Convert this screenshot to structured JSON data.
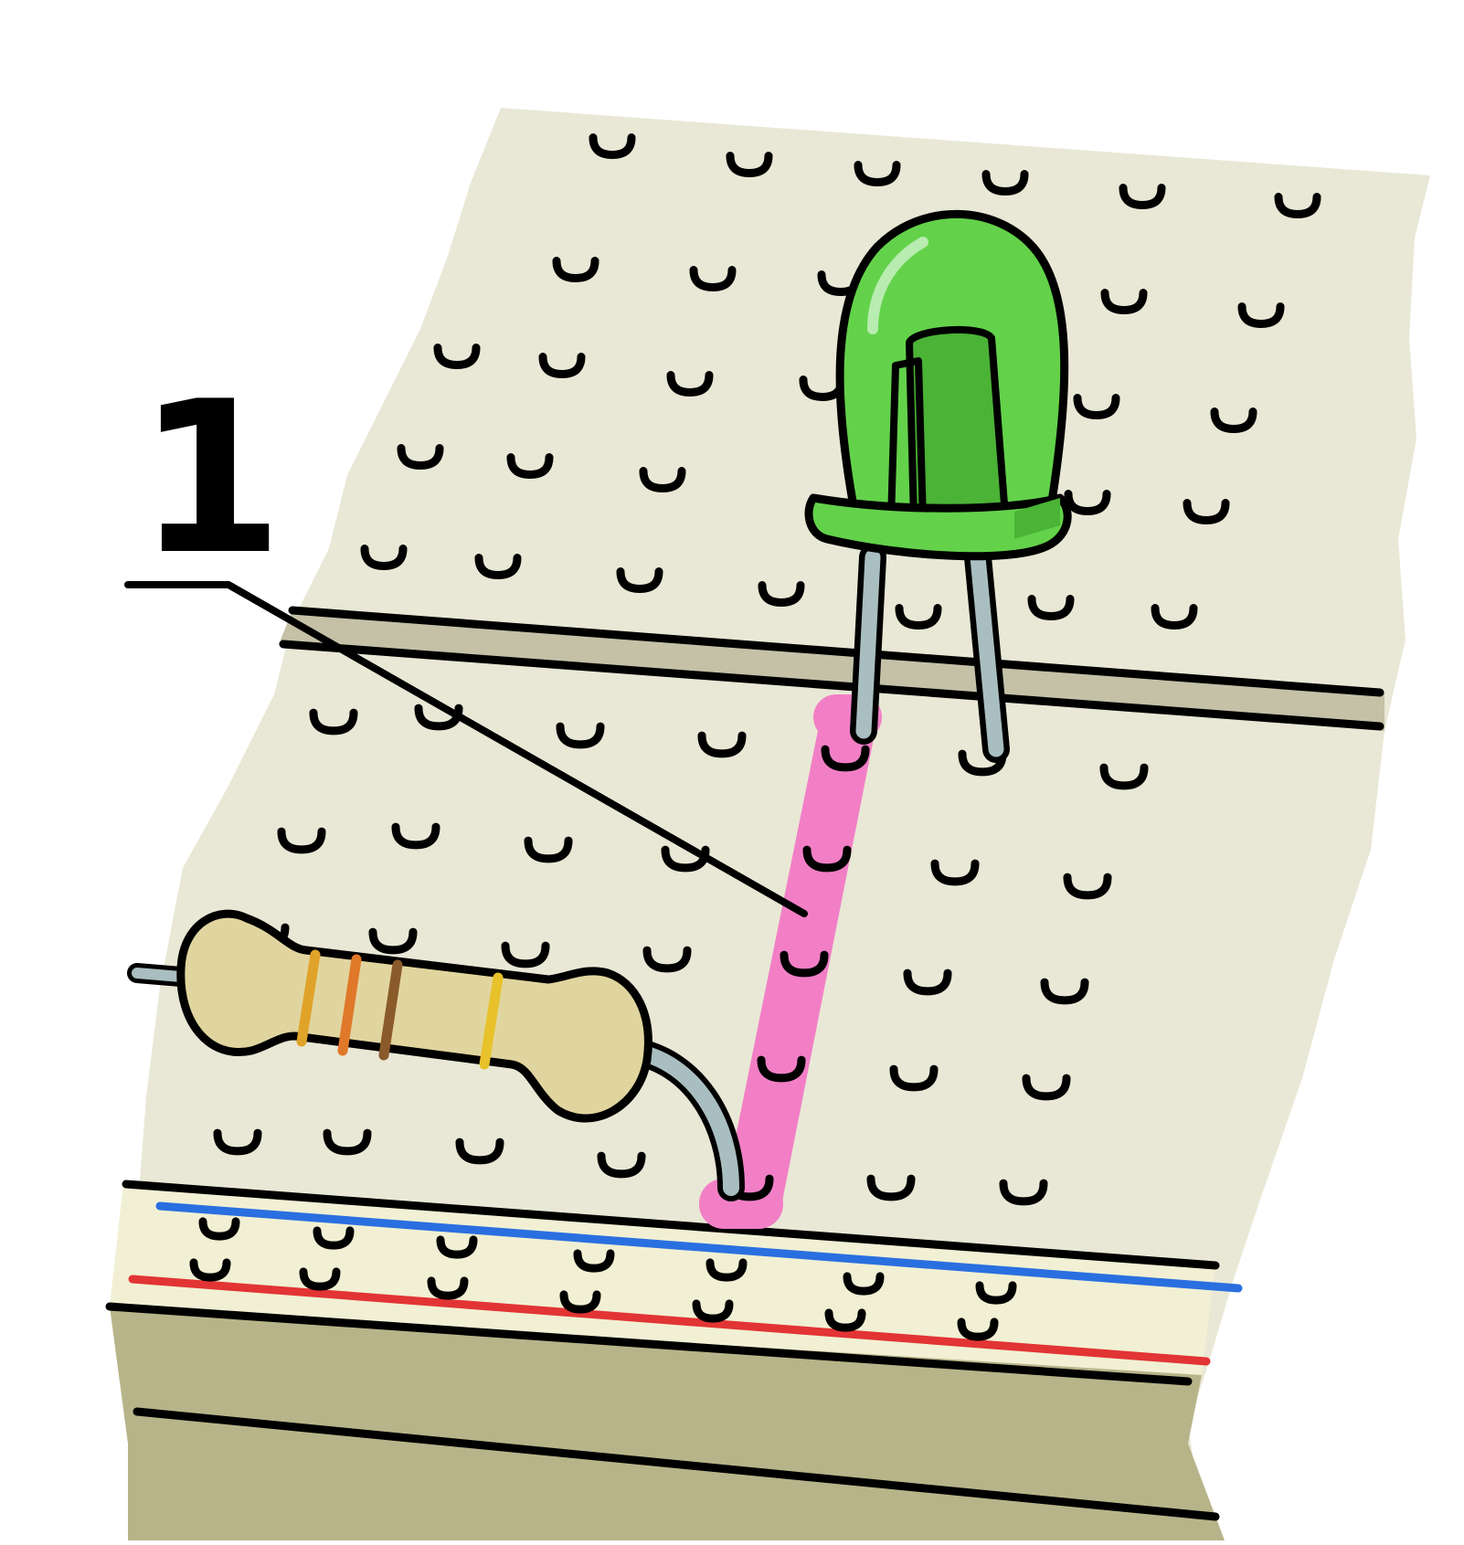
{
  "callout": {
    "label": "1"
  },
  "colors": {
    "board": "#e9e8d6",
    "board_shadow": "#c4c1a7",
    "rail_strip": "#f1f0d4",
    "board_edge": "#b8b48a",
    "led_body": "#63d24a",
    "led_shade": "#4bb336",
    "resistor_body": "#e1d59f",
    "lead": "#a9bec0",
    "highlight": "#f27fc6",
    "rail_negative": "#2a6fe0",
    "rail_positive": "#e23434",
    "band_1": "#e0a32a",
    "band_2": "#e0782a",
    "band_3": "#8a5a2a",
    "band_4": "#e8c22a"
  },
  "icons": {
    "led": "green-led-icon",
    "resistor": "resistor-icon",
    "breadboard": "breadboard-icon"
  }
}
